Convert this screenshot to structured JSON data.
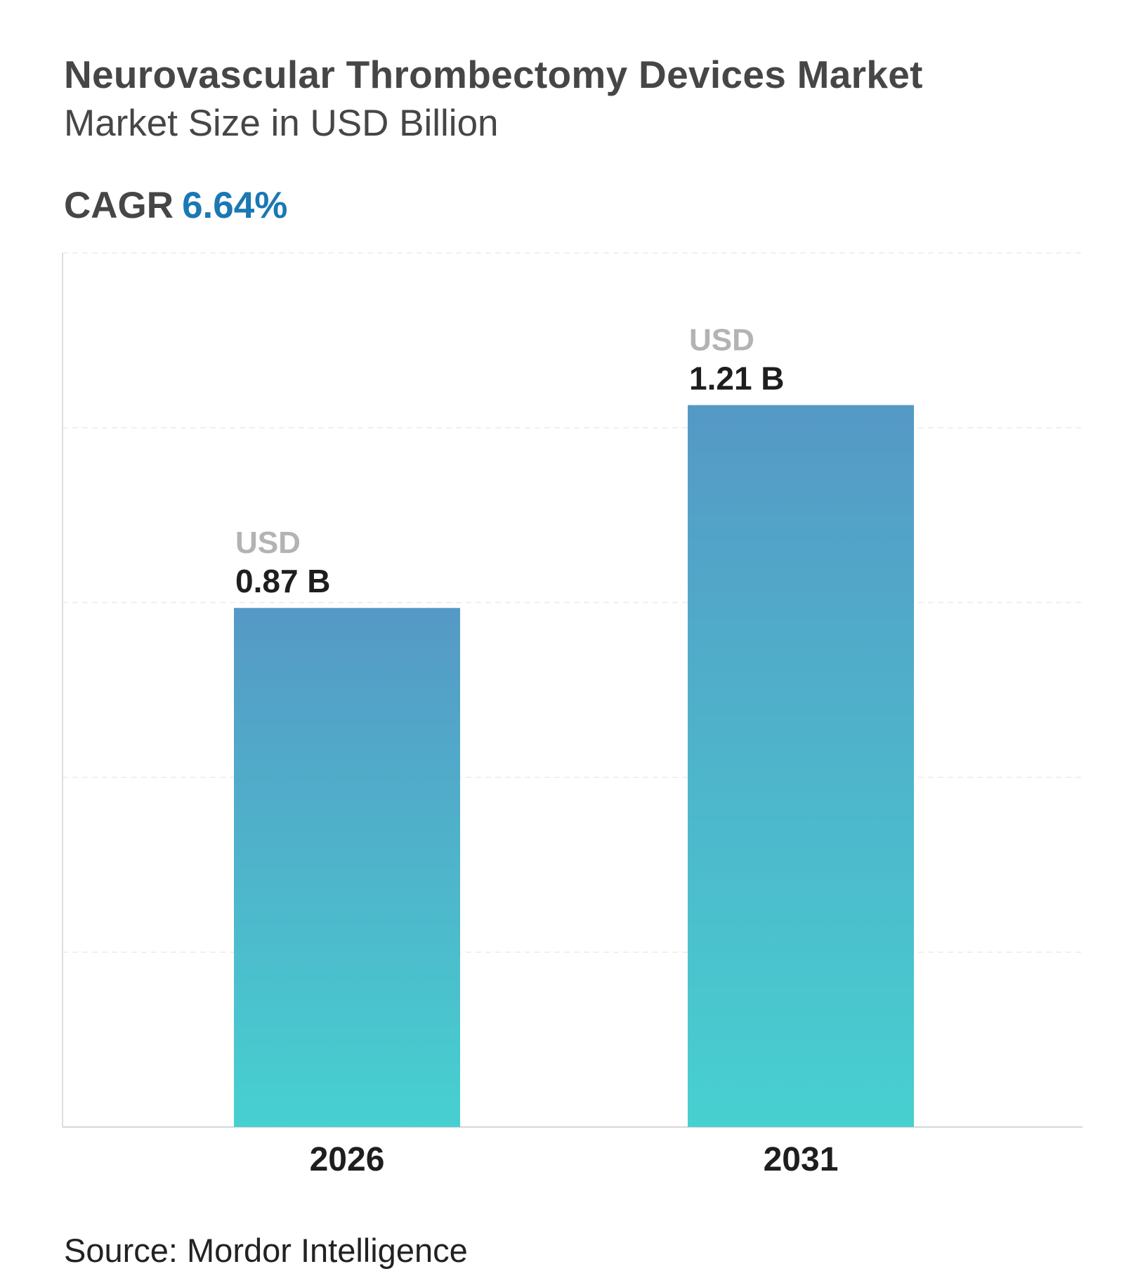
{
  "header": {
    "title": "Neurovascular Thrombectomy Devices Market",
    "subtitle": "Market Size in USD Billion",
    "cagr_label": "CAGR",
    "cagr_value": "6.64%"
  },
  "source": "Source: Mordor Intelligence",
  "colors": {
    "bar_top": "#5599c6",
    "bar_bottom": "#47d0d0",
    "cagr": "#1a78b4"
  },
  "chart_data": {
    "type": "bar",
    "title": "Neurovascular Thrombectomy Devices Market",
    "subtitle": "Market Size in USD Billion",
    "categories": [
      "2026",
      "2031"
    ],
    "values": [
      0.87,
      1.21
    ],
    "value_prefix": "USD",
    "value_labels": [
      "0.87 B",
      "1.21 B"
    ],
    "xlabel": "",
    "ylabel": "Market Size in USD Billion",
    "ylim": [
      0,
      1.465
    ],
    "grid": true,
    "legend": "none"
  }
}
